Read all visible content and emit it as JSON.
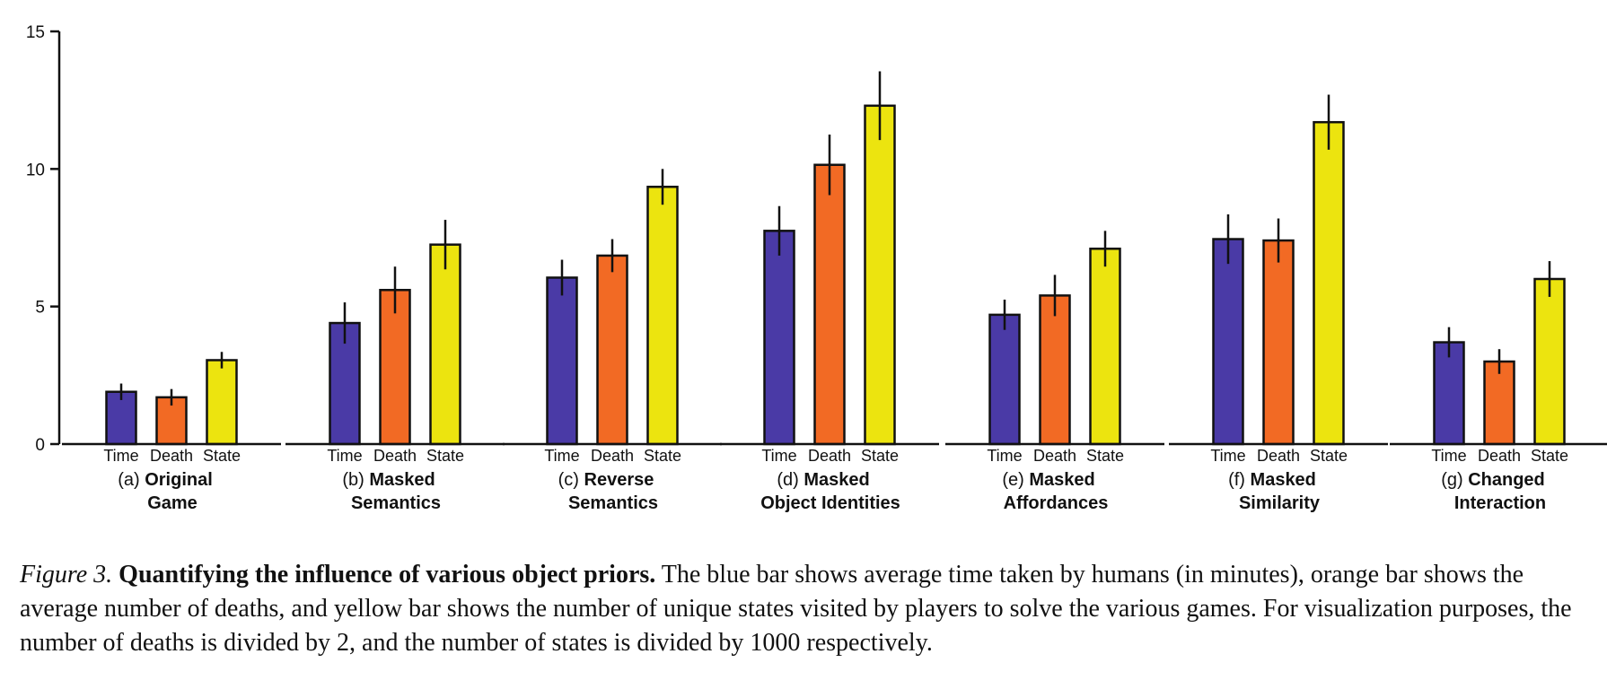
{
  "chart_data": {
    "type": "bar",
    "ylim": [
      0,
      15
    ],
    "yticks": [
      "0",
      "5",
      "10",
      "15"
    ],
    "categories": [
      "Time",
      "Death",
      "State"
    ],
    "colors": {
      "Time": "#4a3aa6",
      "Death": "#f26a24",
      "State": "#ece40f"
    },
    "groups": [
      {
        "prefix": "(a)",
        "line1": "Original",
        "line2": "Game",
        "values": [
          1.9,
          1.7,
          3.05
        ],
        "errors": [
          0.3,
          0.3,
          0.3
        ]
      },
      {
        "prefix": "(b)",
        "line1": "Masked",
        "line2": "Semantics",
        "values": [
          4.4,
          5.6,
          7.25
        ],
        "errors": [
          0.75,
          0.85,
          0.9
        ]
      },
      {
        "prefix": "(c)",
        "line1": "Reverse",
        "line2": "Semantics",
        "values": [
          6.05,
          6.85,
          9.35
        ],
        "errors": [
          0.65,
          0.6,
          0.65
        ]
      },
      {
        "prefix": "(d)",
        "line1": "Masked",
        "line2": "Object Identities",
        "values": [
          7.75,
          10.15,
          12.3
        ],
        "errors": [
          0.9,
          1.1,
          1.25
        ]
      },
      {
        "prefix": "(e)",
        "line1": "Masked",
        "line2": "Affordances",
        "values": [
          4.7,
          5.4,
          7.1
        ],
        "errors": [
          0.55,
          0.75,
          0.65
        ]
      },
      {
        "prefix": "(f)",
        "line1": "Masked",
        "line2": "Similarity",
        "values": [
          7.45,
          7.4,
          11.7
        ],
        "errors": [
          0.9,
          0.8,
          1.0
        ]
      },
      {
        "prefix": "(g)",
        "line1": "Changed",
        "line2": "Interaction",
        "values": [
          3.7,
          3.0,
          6.0
        ],
        "errors": [
          0.55,
          0.45,
          0.65
        ]
      }
    ]
  },
  "caption": {
    "figure_label": "Figure 3.",
    "title": "Quantifying the influence of various object priors.",
    "text": "The blue bar shows average time taken by humans (in minutes), orange bar shows the average number of deaths, and yellow bar shows the number of unique states visited by players to solve the various games. For visualization purposes, the number of deaths is divided by 2, and the number of states is divided by 1000 respectively."
  }
}
